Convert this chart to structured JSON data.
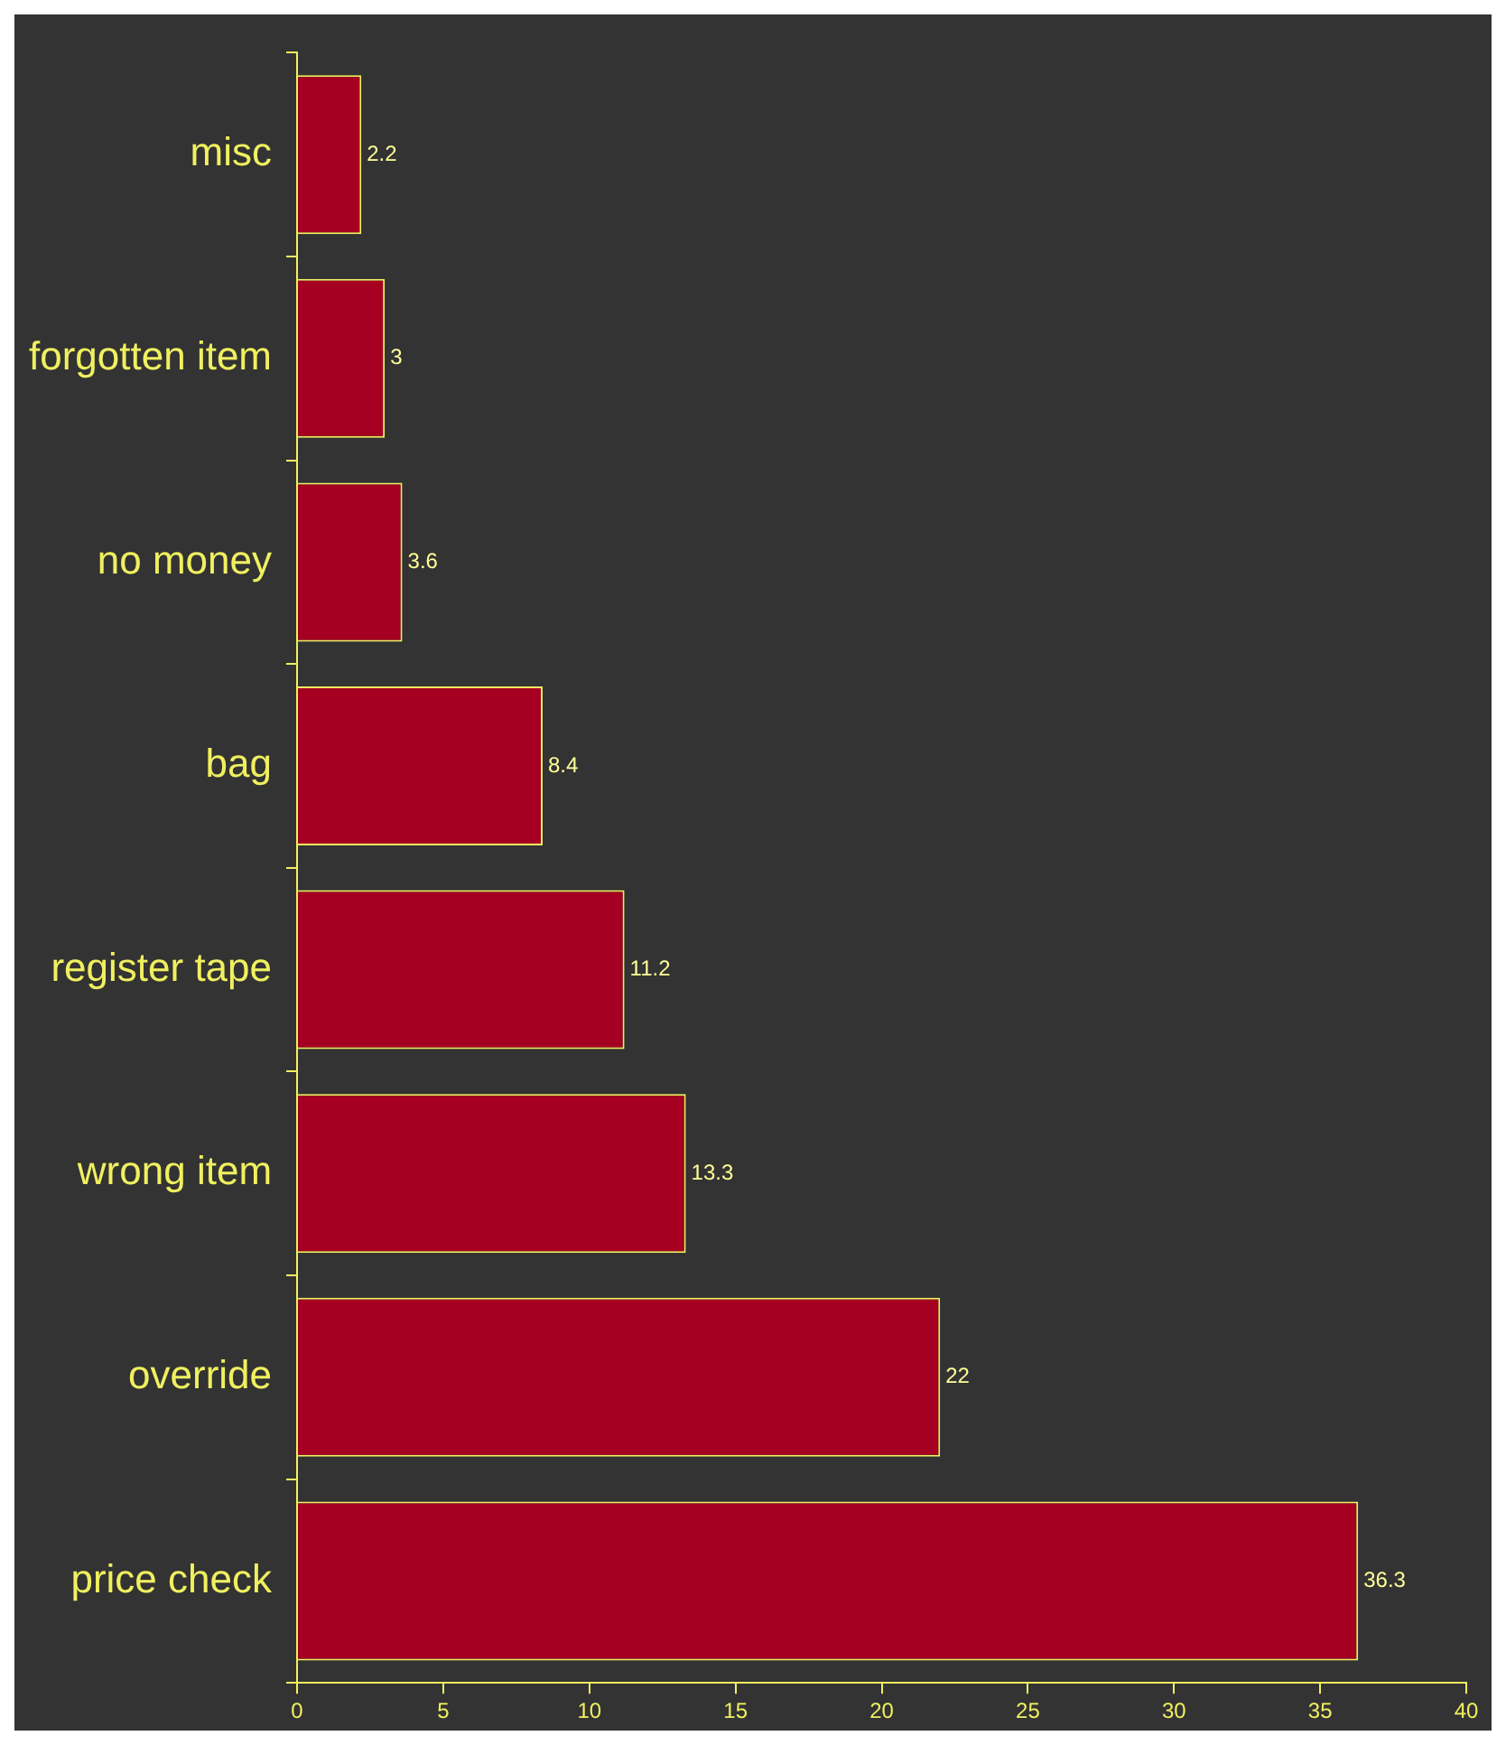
{
  "chart_data": {
    "type": "bar",
    "orientation": "horizontal",
    "categories": [
      "misc",
      "forgotten item",
      "no money",
      "bag",
      "register tape",
      "wrong item",
      "override",
      "price check"
    ],
    "values": [
      2.2,
      3,
      3.6,
      8.4,
      11.2,
      13.3,
      22,
      36.3
    ],
    "color": "#a50021",
    "data_labels": true,
    "grid": false,
    "legend": false,
    "xlim": [
      0,
      40
    ],
    "xticks": [
      0,
      5,
      10,
      15,
      20,
      25,
      30,
      35,
      40
    ]
  }
}
